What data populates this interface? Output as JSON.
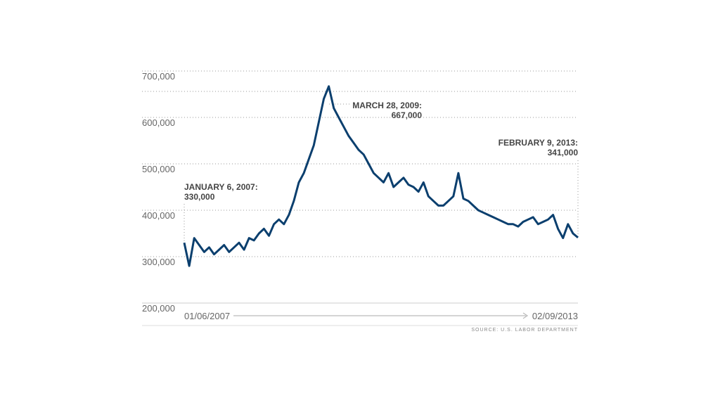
{
  "chart_data": {
    "type": "line",
    "source": "SOURCE: U.S. LABOR DEPARTMENT",
    "annotations": [
      "JANUARY 6, 2007:",
      "330,000",
      "MARCH 28, 2009:",
      "667,000",
      "FEBRUARY 9, 2013:",
      "341,000"
    ],
    "categories": [
      "01/06/2007",
      null,
      null,
      null,
      null,
      null,
      null,
      null,
      null,
      null,
      null,
      null,
      null,
      null,
      null,
      null,
      null,
      null,
      null,
      null,
      null,
      null,
      null,
      null,
      null,
      null,
      null,
      null,
      null,
      null,
      null,
      null,
      null,
      null,
      null,
      null,
      null,
      null,
      null,
      null,
      null,
      null,
      null,
      null,
      null,
      null,
      null,
      null,
      null,
      null,
      null,
      null,
      null,
      null,
      null,
      null,
      null,
      null,
      null,
      null,
      null,
      null,
      null,
      null,
      null,
      null,
      null,
      null,
      null,
      null,
      null,
      null,
      null,
      null,
      null,
      null,
      null,
      null,
      null,
      "02/09/2013"
    ],
    "series": [
      {
        "color": "#0b3f6e",
        "values": [
          330000,
          280000,
          340000,
          325000,
          310000,
          320000,
          305000,
          315000,
          325000,
          310000,
          320000,
          330000,
          315000,
          340000,
          335000,
          350000,
          360000,
          345000,
          370000,
          380000,
          370000,
          390000,
          420000,
          460000,
          480000,
          510000,
          540000,
          590000,
          640000,
          667000,
          620000,
          600000,
          580000,
          560000,
          545000,
          530000,
          520000,
          500000,
          480000,
          470000,
          460000,
          480000,
          450000,
          460000,
          470000,
          455000,
          450000,
          440000,
          460000,
          430000,
          420000,
          410000,
          410000,
          420000,
          430000,
          480000,
          425000,
          420000,
          410000,
          400000,
          395000,
          390000,
          385000,
          380000,
          375000,
          370000,
          370000,
          365000,
          375000,
          380000,
          385000,
          370000,
          375000,
          380000,
          390000,
          360000,
          340000,
          370000,
          350000,
          341000
        ]
      }
    ],
    "ylim": [
      200000,
      700000
    ],
    "yticks": [
      {
        "value": 200000,
        "label": "200,000"
      },
      {
        "value": 300000,
        "label": "300,000"
      },
      {
        "value": 400000,
        "label": "400,000"
      },
      {
        "value": 500000,
        "label": "500,000"
      },
      {
        "value": 600000,
        "label": "600,000"
      },
      {
        "value": 700000,
        "label": "700,000"
      }
    ],
    "grid": true
  }
}
